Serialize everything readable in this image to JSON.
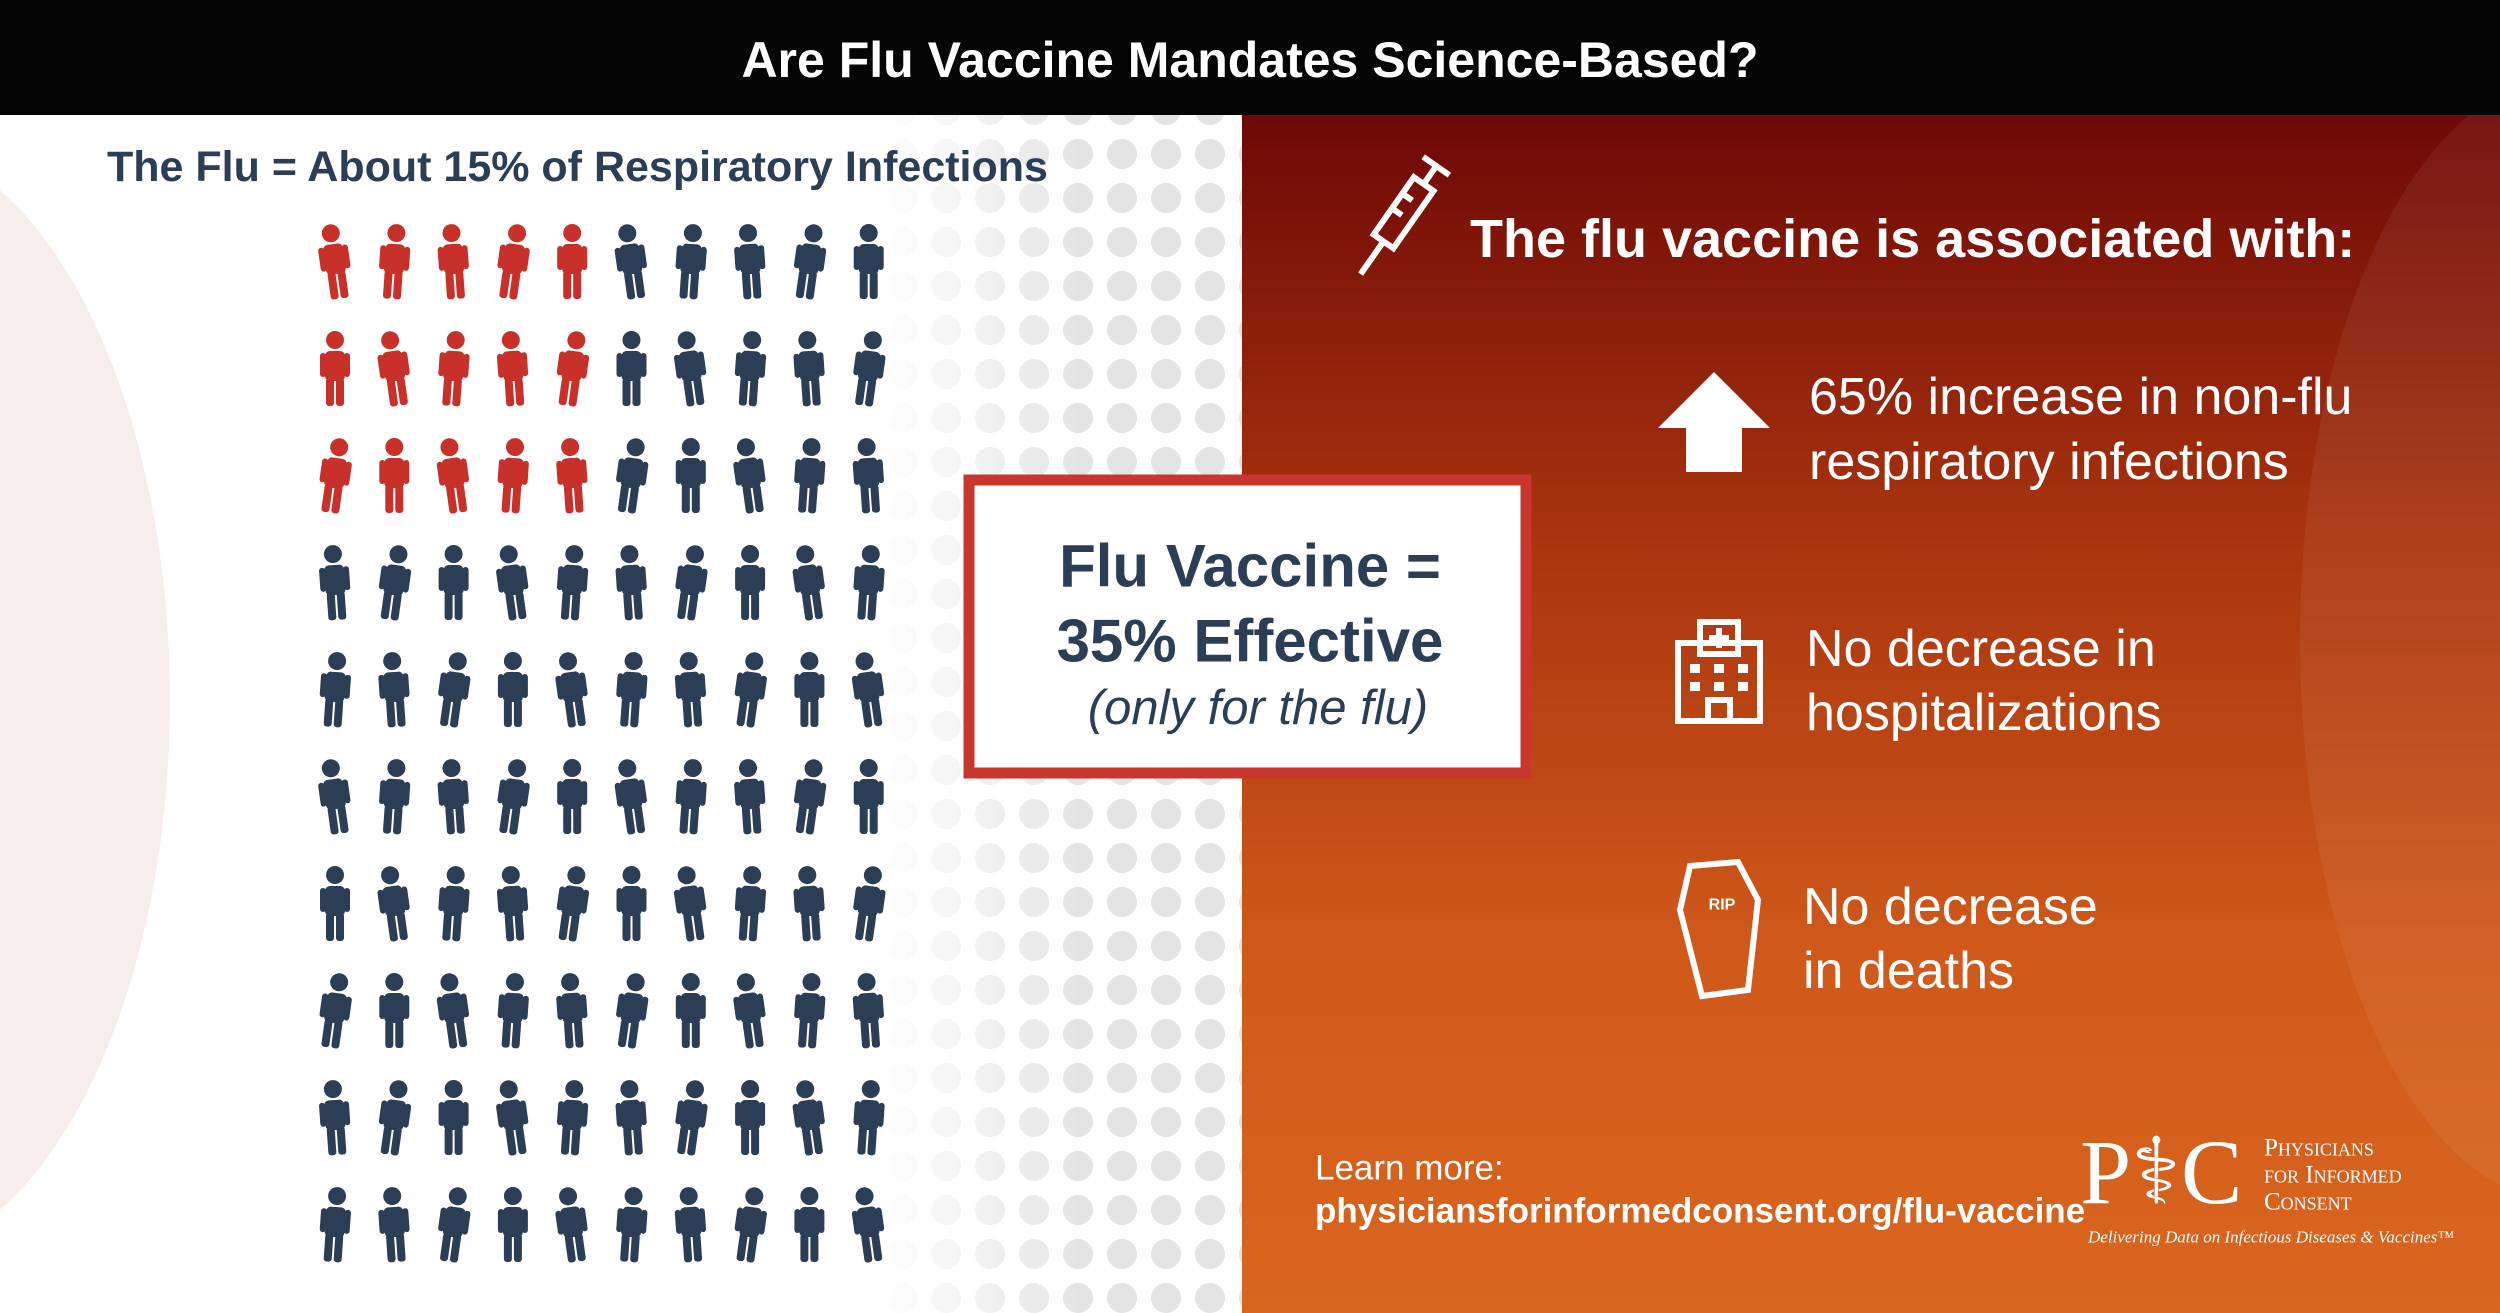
{
  "header": {
    "title": "Are Flu Vaccine Mandates Science-Based?"
  },
  "left": {
    "heading": "The Flu = About 15% of Respiratory Infections"
  },
  "center": {
    "lines": [
      "Flu Vaccine =",
      "35% Effective",
      "(only for the flu)"
    ]
  },
  "right": {
    "heading": "The flu vaccine is associated with:",
    "items": [
      {
        "lines": [
          "65% increase in non-flu",
          "respiratory infections"
        ]
      },
      {
        "lines": [
          "No decrease in",
          "hospitalizations"
        ]
      },
      {
        "lines": [
          "No decrease",
          "in deaths"
        ]
      }
    ]
  },
  "footer": {
    "learn_more": "Learn more:",
    "url": "physiciansforinformedconsent.org/flu-vaccine"
  },
  "logo": {
    "mark": "P⚕C",
    "name": [
      "Physicians",
      "for Informed",
      "Consent"
    ],
    "tagline": "Delivering Data on Infectious Diseases & Vaccines™"
  }
}
